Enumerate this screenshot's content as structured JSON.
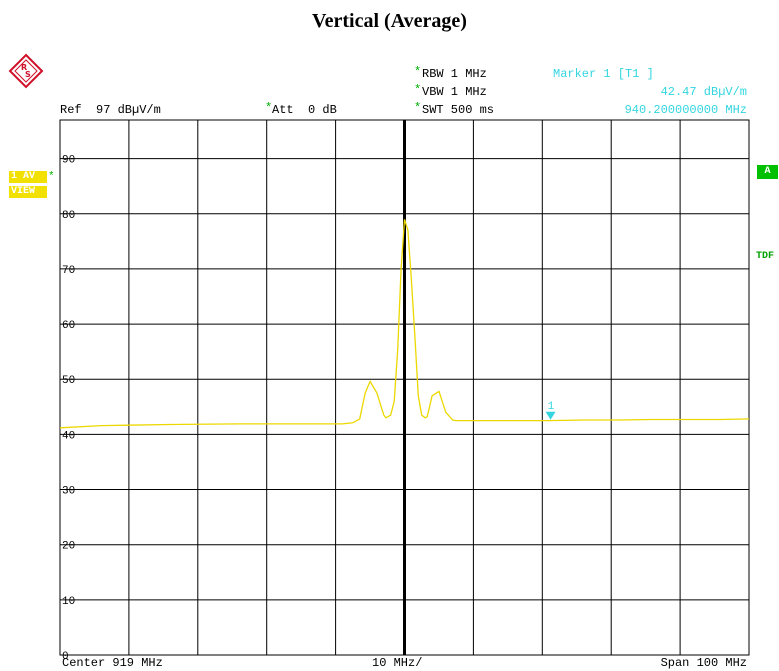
{
  "title": "Vertical (Average)",
  "header": {
    "ref": "Ref  97 dBµV/m",
    "att_star": "*",
    "att": "Att  0 dB",
    "rbw_star": "*",
    "rbw": "RBW 1 MHz",
    "vbw_star": "*",
    "vbw": "VBW 1 MHz",
    "swt_star": "*",
    "swt": "SWT 500 ms",
    "marker_title": "Marker 1 [T1 ]",
    "marker_level": "42.47 dBµV/m",
    "marker_freq": "940.200000000 MHz"
  },
  "side": {
    "trace_line1": "1 AV",
    "trace_star": "*",
    "trace_line2": "VIEW",
    "badge_a": "A",
    "badge_tdf": "TDF"
  },
  "footer": {
    "center": "Center 919 MHz",
    "div": "10 MHz/",
    "span": "Span 100 MHz"
  },
  "colors": {
    "trace": "#ecd800",
    "marker": "#33d6e0",
    "badge": "#f2e000",
    "green": "#00b000"
  },
  "chart_data": {
    "type": "line",
    "title": "Vertical (Average)",
    "xlabel": "",
    "ylabel": "",
    "xlim": [
      869,
      969
    ],
    "ylim": [
      0,
      97
    ],
    "grid": true,
    "y_ticks": [
      0,
      10,
      20,
      30,
      40,
      50,
      60,
      70,
      80,
      90
    ],
    "y_tick_labels": [
      "0",
      "10",
      "20",
      "30",
      "40",
      "50",
      "60",
      "70",
      "80",
      "90"
    ],
    "marker": {
      "label": "1",
      "x": 940.2,
      "y": 42.47
    },
    "center_line_x": 919,
    "series": [
      {
        "name": "1 AV",
        "x": [
          869,
          875,
          885,
          895,
          905,
          910,
          911.5,
          912.5,
          913.3,
          914,
          915,
          916,
          916.3,
          917,
          917.5,
          918,
          918.5,
          919,
          919.5,
          920,
          920.5,
          921,
          921.5,
          922,
          922.3,
          923,
          924,
          925,
          926,
          926.5,
          927,
          927.6,
          928,
          930,
          935,
          940,
          945,
          950,
          955,
          960,
          965,
          969
        ],
        "y": [
          41.2,
          41.6,
          41.8,
          41.9,
          41.9,
          41.9,
          42.1,
          42.8,
          47.5,
          49.6,
          47.5,
          43.5,
          43.0,
          43.5,
          46.0,
          55.0,
          70.0,
          79.0,
          77.0,
          68.0,
          58.0,
          47.0,
          43.5,
          43.0,
          43.2,
          47.0,
          47.8,
          44.0,
          42.6,
          42.5,
          42.5,
          42.5,
          42.5,
          42.5,
          42.5,
          42.5,
          42.6,
          42.6,
          42.7,
          42.7,
          42.7,
          42.8
        ]
      }
    ]
  }
}
